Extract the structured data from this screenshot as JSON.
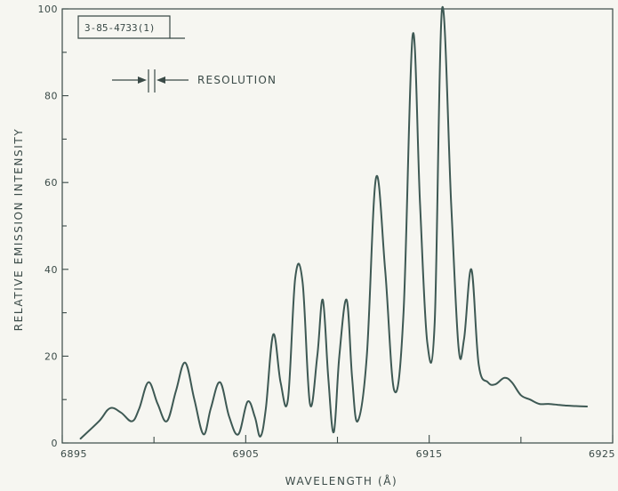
{
  "chart_data": {
    "type": "line",
    "xlabel": "WAVELENGTH (Å)",
    "ylabel": "RELATIVE EMISSION INTENSITY",
    "xlim": [
      6895,
      6925
    ],
    "ylim": [
      0,
      100
    ],
    "xticks": [
      6895,
      6905,
      6915,
      6925
    ],
    "xtick_labels": [
      "6895",
      "6905",
      "6915",
      "6925"
    ],
    "xminor_ticks": [
      6900,
      6910,
      6920
    ],
    "yticks": [
      0,
      20,
      40,
      60,
      80,
      100
    ],
    "ytick_labels": [
      "0",
      "20",
      "40",
      "60",
      "80",
      "100"
    ],
    "grid": false,
    "annotations": {
      "figure_id": "3-85-4733(1)",
      "resolution_label": "RESOLUTION"
    },
    "series": [
      {
        "x": [
          6896.0,
          6897.0,
          6897.6,
          6898.2,
          6898.8,
          6899.2,
          6899.7,
          6900.2,
          6900.7,
          6901.2,
          6901.7,
          6902.2,
          6902.7,
          6903.1,
          6903.6,
          6904.1,
          6904.6,
          6905.1,
          6905.5,
          6905.8,
          6906.1,
          6906.5,
          6906.9,
          6907.3,
          6907.7,
          6908.1,
          6908.5,
          6908.9,
          6909.2,
          6909.5,
          6909.8,
          6910.1,
          6910.5,
          6910.8,
          6911.1,
          6911.6,
          6912.1,
          6912.6,
          6913.1,
          6913.6,
          6914.1,
          6914.5,
          6914.9,
          6915.3,
          6915.7,
          6916.2,
          6916.6,
          6916.9,
          6917.3,
          6917.7,
          6918.2,
          6918.6,
          6919.1,
          6919.5,
          6920.0,
          6920.5,
          6921.0,
          6921.5,
          6922.0,
          6922.5,
          6923.0,
          6923.6
        ],
        "y": [
          1.0,
          5.0,
          8.0,
          7.0,
          5.0,
          8.0,
          14.0,
          9.0,
          5.0,
          12.0,
          18.5,
          10.0,
          2.0,
          8.0,
          14.0,
          6.0,
          2.0,
          9.5,
          6.0,
          1.5,
          8.0,
          25.0,
          14.0,
          10.0,
          38.0,
          37.0,
          9.0,
          20.0,
          33.0,
          15.0,
          2.5,
          20.0,
          33.0,
          15.0,
          5.0,
          20.0,
          61.0,
          40.0,
          12.0,
          30.0,
          94.0,
          55.0,
          23.0,
          28.0,
          100.0,
          55.0,
          22.0,
          24.0,
          40.0,
          18.0,
          14.0,
          13.5,
          15.0,
          14.0,
          11.0,
          10.0,
          9.0,
          9.0,
          8.8,
          8.6,
          8.5,
          8.4
        ]
      }
    ]
  }
}
